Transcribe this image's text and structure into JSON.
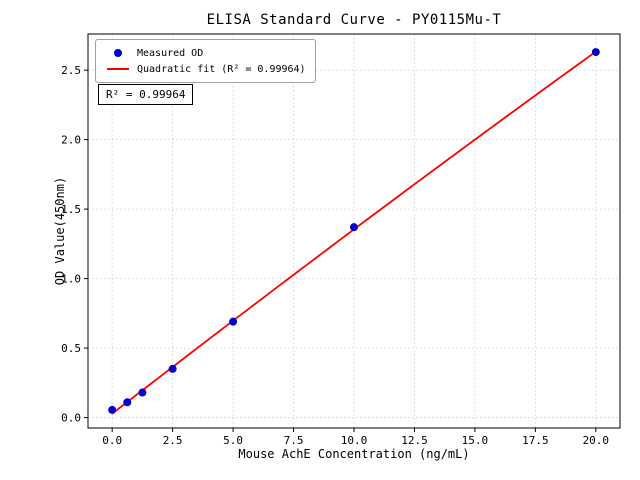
{
  "chart_data": {
    "type": "scatter",
    "title": "ELISA Standard Curve - PY0115Mu-T",
    "xlabel": "Mouse AchE Concentration (ng/mL)",
    "ylabel": "OD Value(450nm)",
    "series": [
      {
        "name": "Measured OD",
        "type": "scatter",
        "color": "#0000cc",
        "x": [
          0,
          0.625,
          1.25,
          2.5,
          5,
          10,
          20
        ],
        "y": [
          0.055,
          0.11,
          0.18,
          0.35,
          0.69,
          1.37,
          2.63
        ]
      },
      {
        "name": "Quadratic fit (R² = 0.99964)",
        "type": "line",
        "fit": "quadratic",
        "color": "#ff0000"
      }
    ],
    "xlim": [
      -1,
      21
    ],
    "ylim": [
      -0.075,
      2.76
    ],
    "xticks": [
      0,
      2.5,
      5,
      7.5,
      10,
      12.5,
      15,
      17.5,
      20
    ],
    "xtick_labels": [
      "0.0",
      "2.5",
      "5.0",
      "7.5",
      "10.0",
      "12.5",
      "15.0",
      "17.5",
      "20.0"
    ],
    "yticks": [
      0,
      0.5,
      1,
      1.5,
      2,
      2.5
    ],
    "ytick_labels": [
      "0.0",
      "0.5",
      "1.0",
      "1.5",
      "2.0",
      "2.5"
    ],
    "grid": true,
    "grid_color": "#c9c9c9",
    "legend_position": "upper-left",
    "annotation": "R² = 0.99964"
  }
}
